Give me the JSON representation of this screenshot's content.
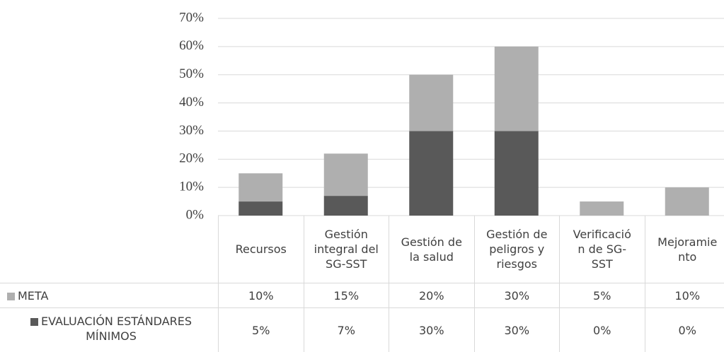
{
  "chart_data": {
    "type": "bar",
    "stacked": true,
    "categories": [
      "Recursos",
      "Gestión integral del SG-SST",
      "Gestión de la salud",
      "Gestión de peligros y riesgos",
      "Verificación de SG-SST",
      "Mejoramiento"
    ],
    "series": [
      {
        "name": "META",
        "color": "#afafaf",
        "values": [
          10,
          15,
          20,
          30,
          5,
          10
        ],
        "value_labels": [
          "10%",
          "15%",
          "20%",
          "30%",
          "5%",
          "10%"
        ]
      },
      {
        "name": "EVALUACIÓN ESTÁNDARES MÍNIMOS",
        "color": "#595959",
        "values": [
          5,
          7,
          30,
          30,
          0,
          0
        ],
        "value_labels": [
          "5%",
          "7%",
          "30%",
          "30%",
          "0%",
          "0%"
        ]
      }
    ],
    "ylim": [
      0,
      70
    ],
    "yticks": [
      {
        "value": 0,
        "label": "0%"
      },
      {
        "value": 10,
        "label": "10%"
      },
      {
        "value": 20,
        "label": "20%"
      },
      {
        "value": 30,
        "label": "30%"
      },
      {
        "value": 40,
        "label": "40%"
      },
      {
        "value": 50,
        "label": "50%"
      },
      {
        "value": 60,
        "label": "60%"
      },
      {
        "value": 70,
        "label": "70%"
      }
    ],
    "grid": true,
    "data_table": true
  }
}
